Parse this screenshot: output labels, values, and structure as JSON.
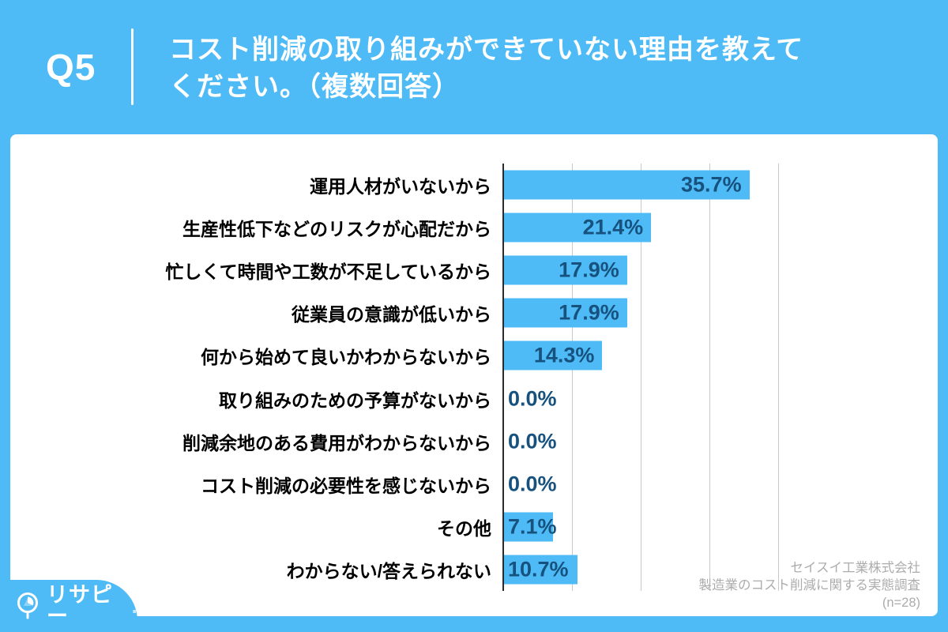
{
  "header": {
    "question_number": "Q5",
    "title_line1": "コスト削減の取り組みができていない理由を教えて",
    "title_line2": "ください。（複数回答）"
  },
  "chart_data": {
    "type": "bar",
    "orientation": "horizontal",
    "categories": [
      "運用人材がいないから",
      "生産性低下などのリスクが心配だから",
      "忙しくて時間や工数が不足しているから",
      "従業員の意識が低いから",
      "何から始めて良いかわからないから",
      "取り組みのための予算がないから",
      "削減余地のある費用がわからないから",
      "コスト削減の必要性を感じないから",
      "その他",
      "わからない/答えられない"
    ],
    "values": [
      35.7,
      21.4,
      17.9,
      17.9,
      14.3,
      0.0,
      0.0,
      0.0,
      7.1,
      10.7
    ],
    "value_labels": [
      "35.7%",
      "21.4%",
      "17.9%",
      "17.9%",
      "14.3%",
      "0.0%",
      "0.0%",
      "0.0%",
      "7.1%",
      "10.7%"
    ],
    "xlim": [
      0,
      40
    ],
    "gridline_percents": [
      10,
      20,
      30,
      40
    ],
    "grid": true,
    "legend": false,
    "bar_color": "#4fbbf6",
    "value_text_color": "#17527f"
  },
  "source": {
    "line1": "セイスイ工業株式会社",
    "line2": "製造業のコスト削減に関する実態調査",
    "line3": "(n=28)"
  },
  "logo": {
    "icon": "pie-chart-pin-icon",
    "text": "リサピー",
    "dot": "."
  },
  "colors": {
    "accent_blue": "#4fbbf6",
    "value_navy": "#17527f",
    "gridline_gray": "#c9c9c9",
    "source_gray": "#acacac"
  }
}
